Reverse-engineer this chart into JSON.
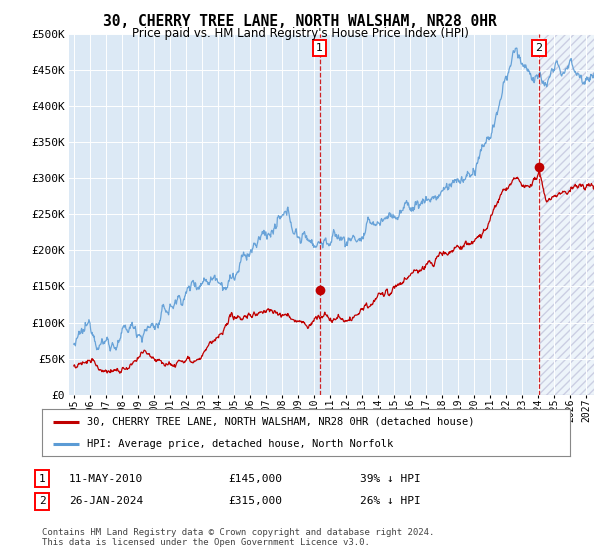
{
  "title": "30, CHERRY TREE LANE, NORTH WALSHAM, NR28 0HR",
  "subtitle": "Price paid vs. HM Land Registry's House Price Index (HPI)",
  "ylim": [
    0,
    500000
  ],
  "yticks": [
    0,
    50000,
    100000,
    150000,
    200000,
    250000,
    300000,
    350000,
    400000,
    450000,
    500000
  ],
  "ytick_labels": [
    "£0",
    "£50K",
    "£100K",
    "£150K",
    "£200K",
    "£250K",
    "£300K",
    "£350K",
    "£400K",
    "£450K",
    "£500K"
  ],
  "xlim_start": 1995.0,
  "xlim_end": 2027.5,
  "hpi_color": "#5b9bd5",
  "price_color": "#c00000",
  "sale1_date": 2010.36,
  "sale1_price": 145000,
  "sale1_label": "11-MAY-2010",
  "sale1_pct": "39% ↓ HPI",
  "sale2_date": 2024.07,
  "sale2_price": 315000,
  "sale2_label": "26-JAN-2024",
  "sale2_pct": "26% ↓ HPI",
  "legend_line1": "30, CHERRY TREE LANE, NORTH WALSHAM, NR28 0HR (detached house)",
  "legend_line2": "HPI: Average price, detached house, North Norfolk",
  "footer": "Contains HM Land Registry data © Crown copyright and database right 2024.\nThis data is licensed under the Open Government Licence v3.0.",
  "hatch_start": 2024.07,
  "background_color": "#ffffff",
  "plot_bg_color": "#dce9f5",
  "highlight_bg_color": "#dce9f5"
}
